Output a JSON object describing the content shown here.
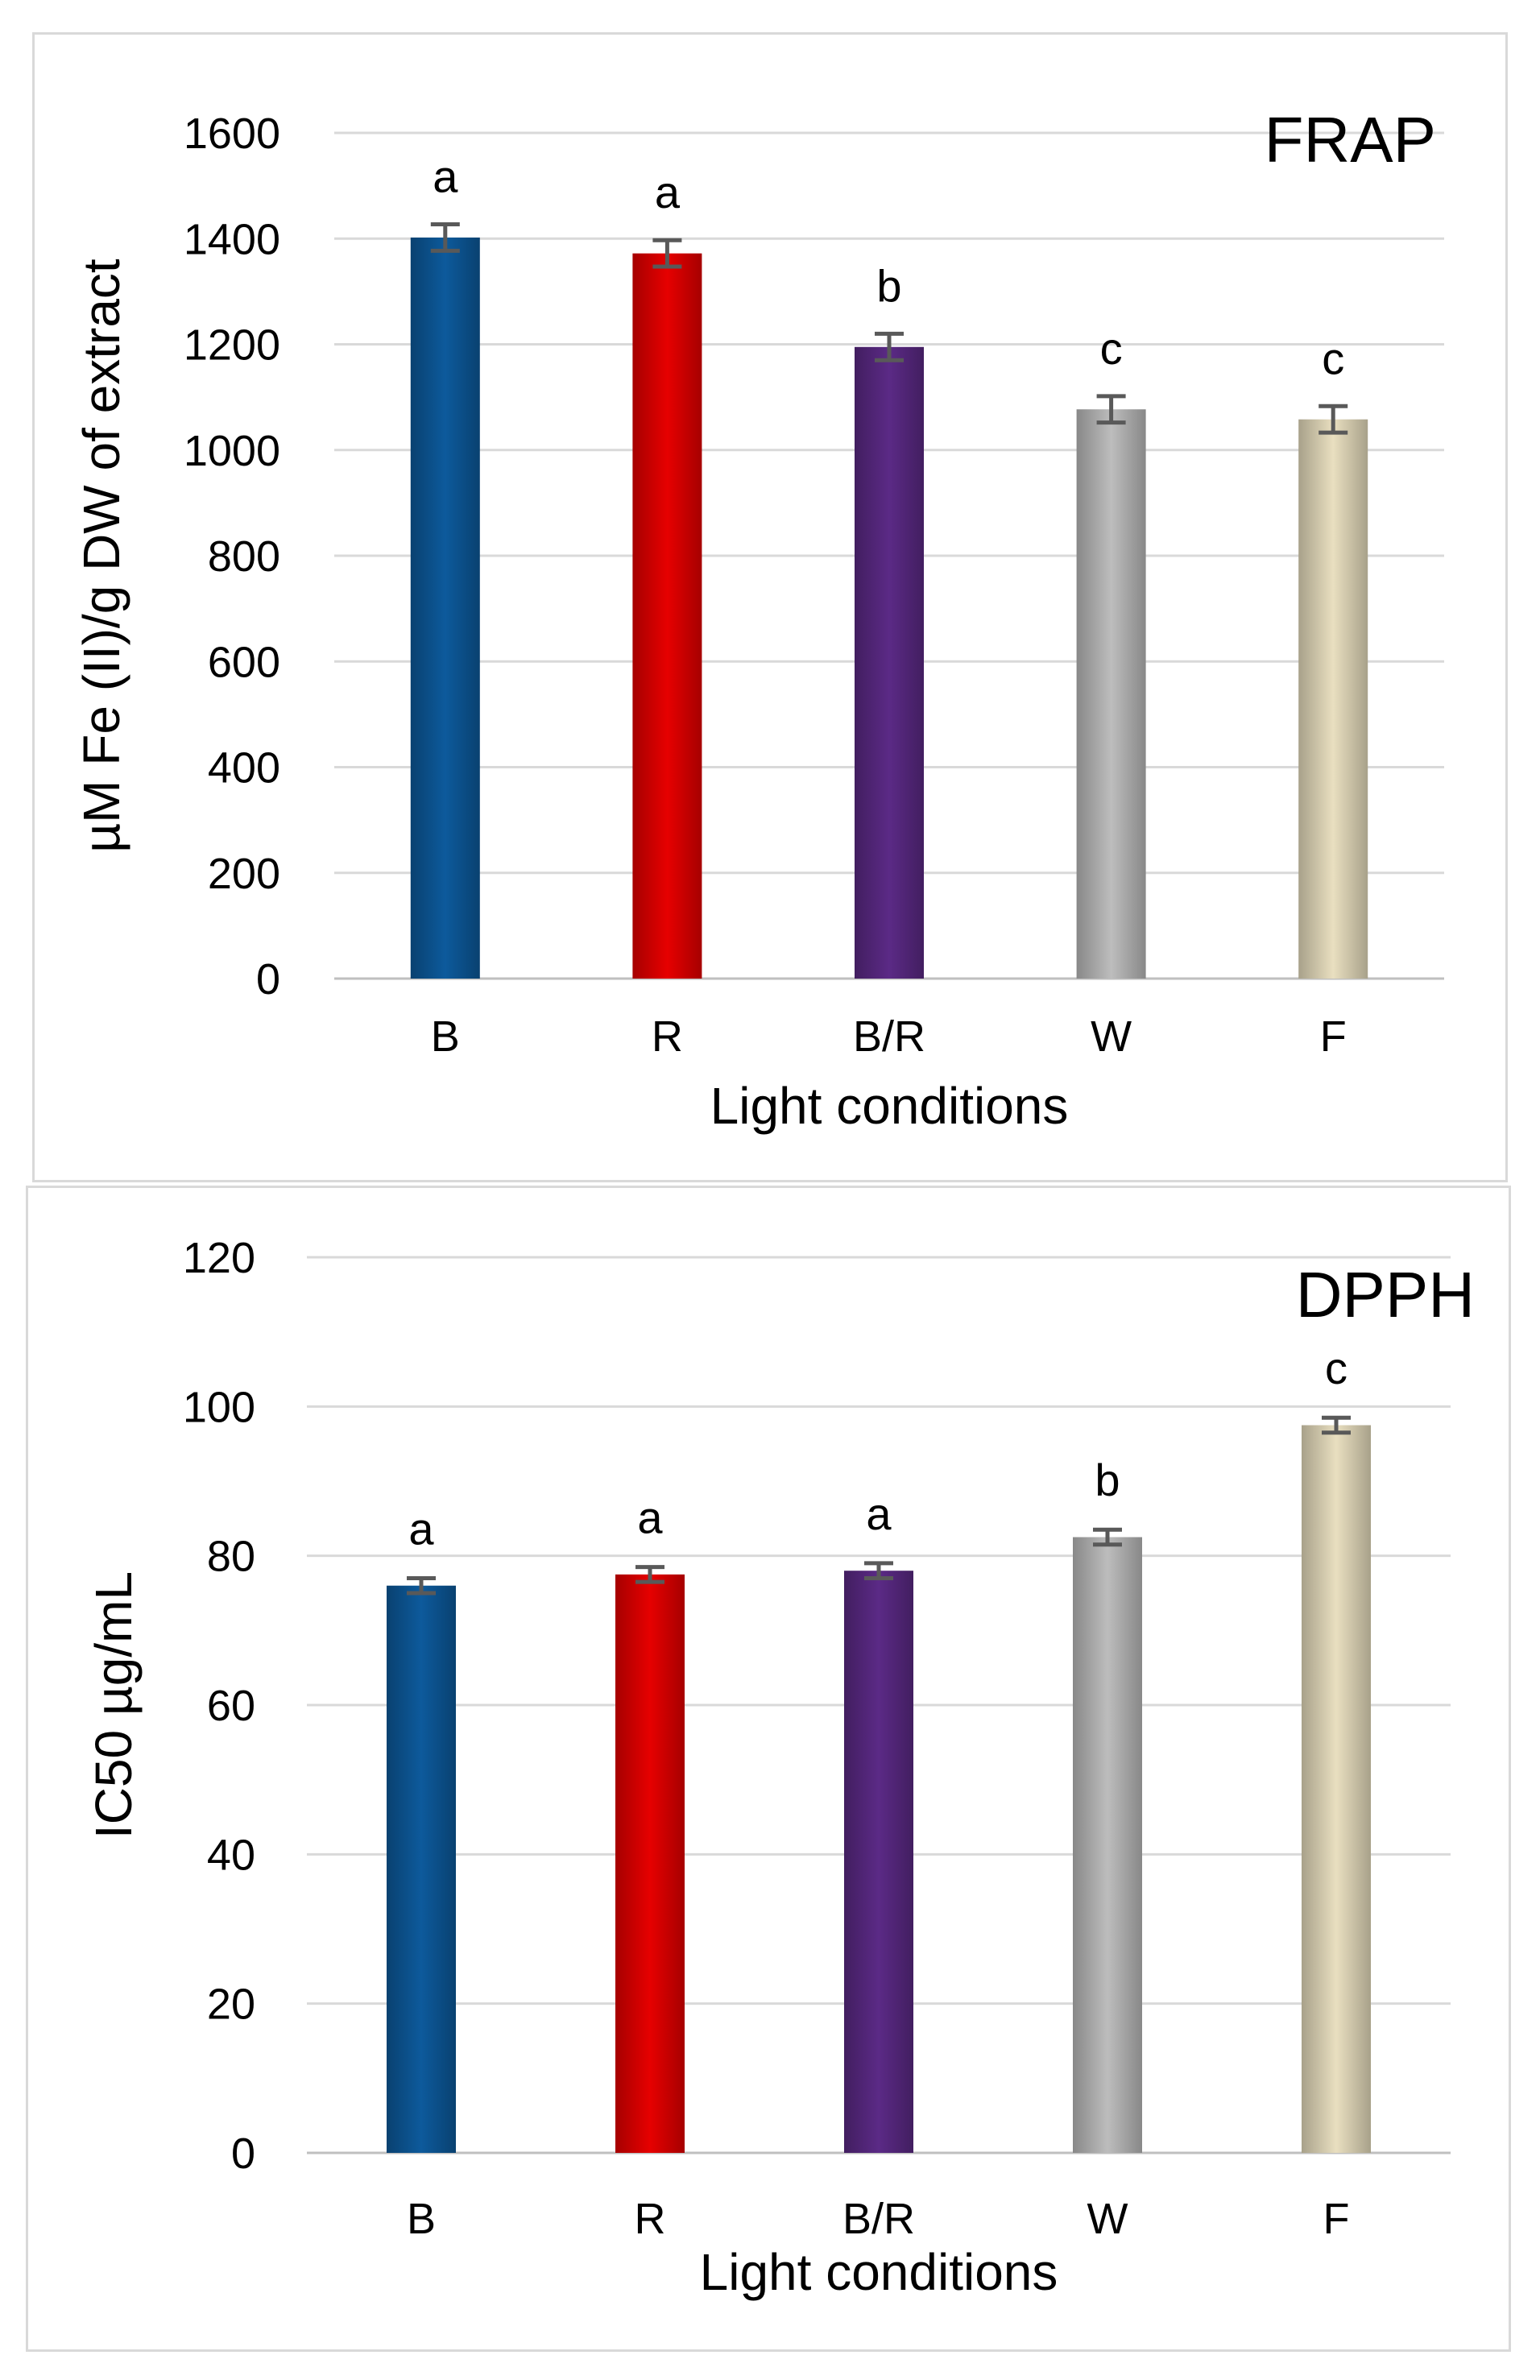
{
  "chart_data": [
    {
      "type": "bar",
      "title": "FRAP",
      "xlabel": "Light conditions",
      "ylabel": "µM Fe (II)/g DW of extract",
      "categories": [
        "B",
        "R",
        "B/R",
        "W",
        "F"
      ],
      "values": [
        1402,
        1372,
        1195,
        1077,
        1058
      ],
      "errors": [
        25,
        25,
        25,
        25,
        25
      ],
      "significance": [
        "a",
        "a",
        "b",
        "c",
        "c"
      ],
      "ylim": [
        0,
        1600
      ],
      "yticks": [
        0,
        200,
        400,
        600,
        800,
        1000,
        1200,
        1400,
        1600
      ],
      "grid": true,
      "colors": [
        "#0d5a9c",
        "#e60000",
        "#5b2a86",
        "#bdbdbd",
        "#e9dfc0"
      ]
    },
    {
      "type": "bar",
      "title": "DPPH",
      "xlabel": "Light conditions",
      "ylabel": "IC50 µg/mL",
      "categories": [
        "B",
        "R",
        "B/R",
        "W",
        "F"
      ],
      "values": [
        76,
        77.5,
        78,
        82.5,
        97.5
      ],
      "errors": [
        1,
        1,
        1,
        1,
        1
      ],
      "significance": [
        "a",
        "a",
        "a",
        "b",
        "c"
      ],
      "ylim": [
        0,
        120
      ],
      "yticks": [
        0,
        20,
        40,
        60,
        80,
        100,
        120
      ],
      "grid": true,
      "colors": [
        "#0d5a9c",
        "#e60000",
        "#5b2a86",
        "#bdbdbd",
        "#e9dfc0"
      ]
    }
  ]
}
